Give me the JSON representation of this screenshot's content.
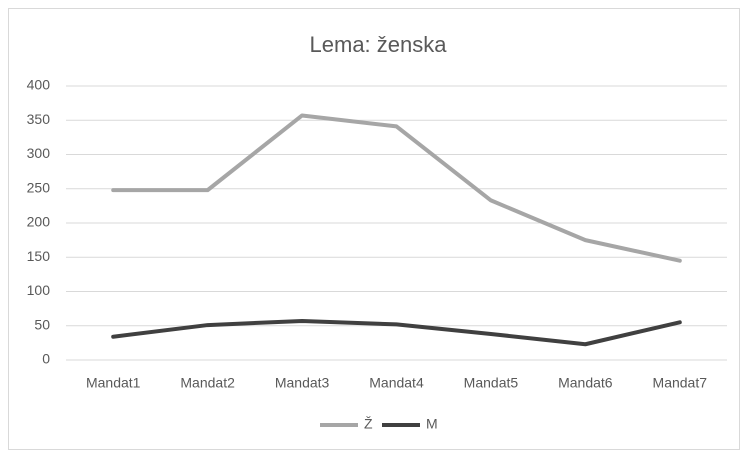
{
  "chart_data": {
    "type": "line",
    "title": "Lema: ženska",
    "categories": [
      "Mandat1",
      "Mandat2",
      "Mandat3",
      "Mandat4",
      "Mandat5",
      "Mandat6",
      "Mandat7"
    ],
    "series": [
      {
        "name": "Ž",
        "color": "#a6a6a6",
        "values": [
          248,
          248,
          357,
          341,
          233,
          175,
          145
        ]
      },
      {
        "name": "M",
        "color": "#404040",
        "values": [
          34,
          51,
          57,
          52,
          38,
          23,
          55
        ]
      }
    ],
    "ylim": [
      0,
      400
    ],
    "yticks": [
      0,
      50,
      100,
      150,
      200,
      250,
      300,
      350,
      400
    ],
    "grid": true,
    "legend": "bottom"
  }
}
